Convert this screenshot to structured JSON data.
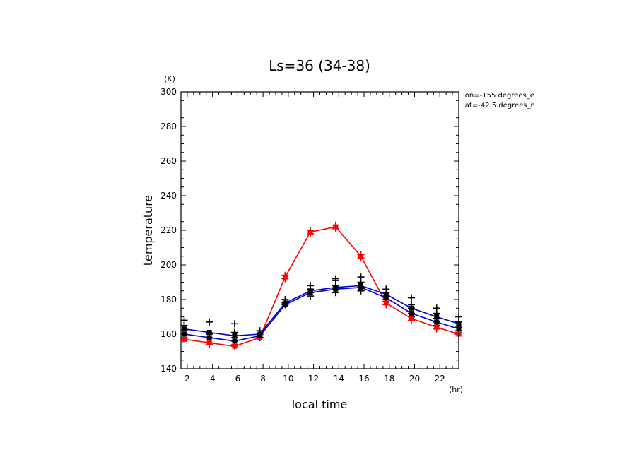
{
  "chart_data": {
    "type": "line",
    "title": "Ls=36 (34-38)",
    "xlabel": "local time",
    "ylabel": "temperature",
    "x_unit": "(hr)",
    "y_unit": "(K)",
    "xlim": [
      1.5,
      23.5
    ],
    "ylim": [
      140,
      300
    ],
    "xticks": [
      2,
      4,
      6,
      8,
      10,
      12,
      14,
      16,
      18,
      20,
      22
    ],
    "yticks": [
      140,
      160,
      180,
      200,
      220,
      240,
      260,
      280,
      300
    ],
    "annotations": [
      "lon=-155 degrees_e",
      "lat=-42.5 degrees_n"
    ],
    "x": [
      1.75,
      3.75,
      5.75,
      7.75,
      9.75,
      11.75,
      13.75,
      15.75,
      17.75,
      19.75,
      21.75,
      23.5
    ],
    "series": [
      {
        "color": "#ff0000",
        "line_values": [
          157,
          155,
          153,
          158,
          193,
          219,
          222,
          205,
          178,
          169,
          164,
          160
        ],
        "points": [
          [
            1.75,
            157
          ],
          [
            1.75,
            158
          ],
          [
            3.75,
            155
          ],
          [
            3.75,
            154
          ],
          [
            5.75,
            153
          ],
          [
            5.75,
            154
          ],
          [
            7.75,
            158
          ],
          [
            7.75,
            159
          ],
          [
            9.75,
            192
          ],
          [
            9.75,
            194
          ],
          [
            11.75,
            218
          ],
          [
            11.75,
            220
          ],
          [
            13.75,
            221
          ],
          [
            13.75,
            223
          ],
          [
            15.75,
            204
          ],
          [
            15.75,
            206
          ],
          [
            17.75,
            177
          ],
          [
            17.75,
            179
          ],
          [
            19.75,
            168
          ],
          [
            19.75,
            170
          ],
          [
            21.75,
            163
          ],
          [
            21.75,
            165
          ],
          [
            23.5,
            159
          ],
          [
            23.5,
            161
          ]
        ]
      },
      {
        "color": "#0000cc",
        "line_values": [
          163,
          161,
          159,
          160,
          178,
          185,
          187,
          188,
          183,
          175,
          170,
          166
        ],
        "points": []
      },
      {
        "color": "#0000cc",
        "line_values": [
          160,
          158,
          156,
          159,
          177,
          184,
          186,
          187,
          181,
          172,
          167,
          163
        ],
        "points": []
      },
      {
        "color": "#000000",
        "line_values": [],
        "points": [
          [
            1.75,
            160
          ],
          [
            1.75,
            162
          ],
          [
            1.75,
            165
          ],
          [
            1.75,
            168
          ],
          [
            3.75,
            158
          ],
          [
            3.75,
            160
          ],
          [
            3.75,
            167
          ],
          [
            5.75,
            156
          ],
          [
            5.75,
            158
          ],
          [
            5.75,
            161
          ],
          [
            5.75,
            166
          ],
          [
            7.75,
            158
          ],
          [
            7.75,
            160
          ],
          [
            7.75,
            162
          ],
          [
            9.75,
            177
          ],
          [
            9.75,
            178
          ],
          [
            9.75,
            180
          ],
          [
            11.75,
            182
          ],
          [
            11.75,
            184
          ],
          [
            11.75,
            186
          ],
          [
            11.75,
            188
          ],
          [
            13.75,
            184
          ],
          [
            13.75,
            186
          ],
          [
            13.75,
            188
          ],
          [
            13.75,
            191
          ],
          [
            13.75,
            192
          ],
          [
            15.75,
            185
          ],
          [
            15.75,
            187
          ],
          [
            15.75,
            190
          ],
          [
            15.75,
            193
          ],
          [
            17.75,
            180
          ],
          [
            17.75,
            182
          ],
          [
            17.75,
            184
          ],
          [
            17.75,
            186
          ],
          [
            19.75,
            170
          ],
          [
            19.75,
            172
          ],
          [
            19.75,
            175
          ],
          [
            19.75,
            177
          ],
          [
            19.75,
            181
          ],
          [
            21.75,
            165
          ],
          [
            21.75,
            167
          ],
          [
            21.75,
            169
          ],
          [
            21.75,
            172
          ],
          [
            21.75,
            175
          ],
          [
            23.5,
            162
          ],
          [
            23.5,
            164
          ],
          [
            23.5,
            167
          ],
          [
            23.5,
            170
          ]
        ]
      }
    ]
  }
}
